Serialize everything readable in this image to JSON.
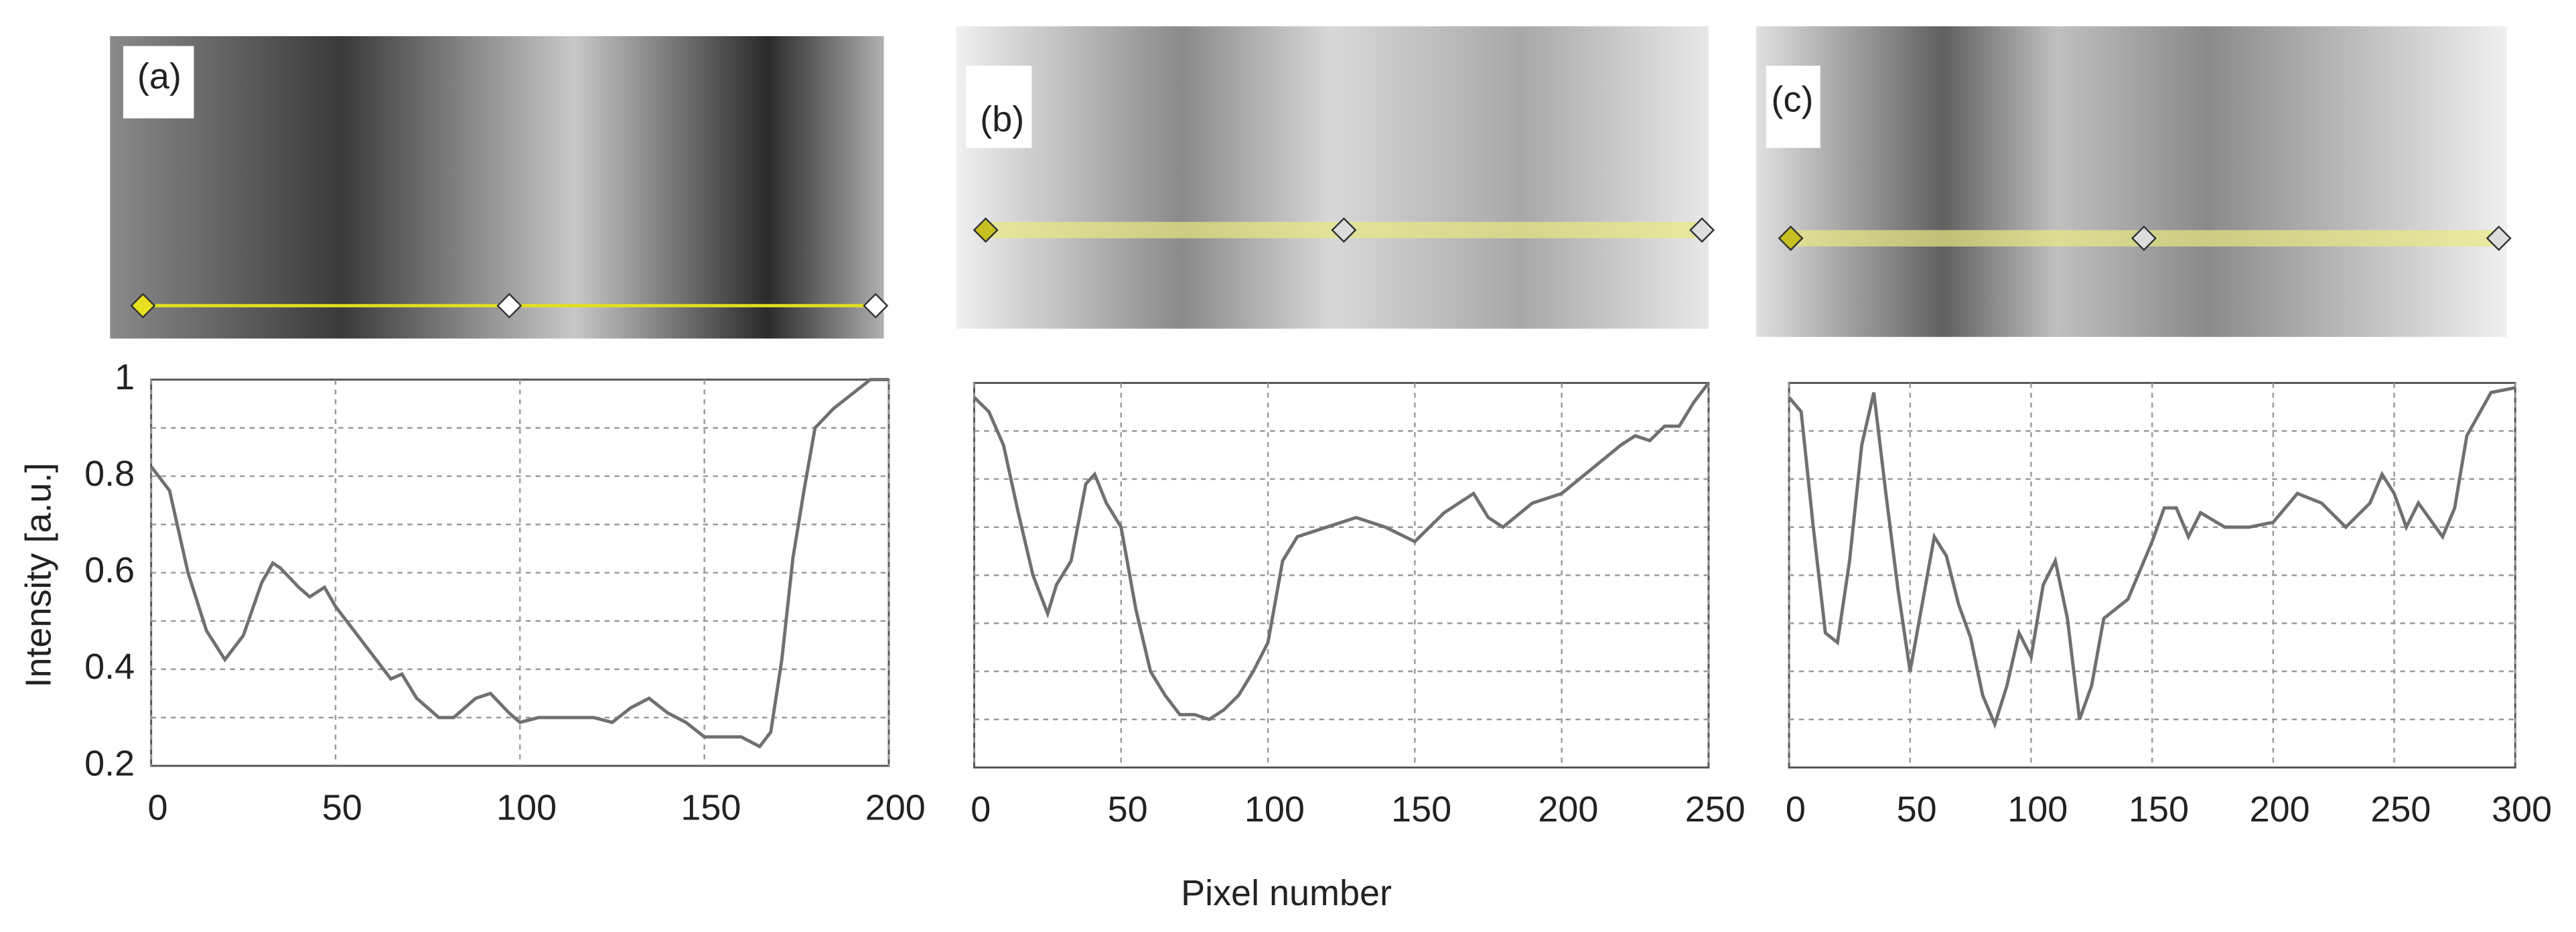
{
  "chart_data": [
    {
      "type": "line",
      "label": "(a)",
      "ylabel": "Intensity [a.u.]",
      "color": "#707070",
      "x": [
        0,
        5,
        10,
        15,
        20,
        25,
        30,
        33,
        35,
        40,
        43,
        47,
        50,
        55,
        60,
        65,
        68,
        72,
        78,
        82,
        88,
        92,
        97,
        100,
        105,
        110,
        120,
        125,
        130,
        135,
        140,
        145,
        150,
        155,
        160,
        165,
        168,
        171,
        174,
        177,
        180,
        185,
        190,
        195,
        200
      ],
      "values": [
        0.82,
        0.77,
        0.6,
        0.48,
        0.42,
        0.47,
        0.58,
        0.62,
        0.61,
        0.57,
        0.55,
        0.57,
        0.53,
        0.48,
        0.43,
        0.38,
        0.39,
        0.34,
        0.3,
        0.3,
        0.34,
        0.35,
        0.31,
        0.29,
        0.3,
        0.3,
        0.3,
        0.29,
        0.32,
        0.34,
        0.31,
        0.29,
        0.26,
        0.26,
        0.26,
        0.24,
        0.27,
        0.42,
        0.63,
        0.77,
        0.9,
        0.94,
        0.97,
        1.0,
        1.0
      ],
      "xlim": [
        0,
        200
      ],
      "xticks": [
        0,
        50,
        100,
        150,
        200
      ],
      "ylim": [
        0.2,
        1.0
      ],
      "yticks": [
        0.2,
        0.4,
        0.6,
        0.8,
        1.0
      ],
      "ygrid": [
        0.3,
        0.4,
        0.5,
        0.6,
        0.7,
        0.8,
        0.9
      ],
      "grid": true
    },
    {
      "type": "line",
      "label": "(b)",
      "xlabel": "Pixel number",
      "color": "#707070",
      "x": [
        0,
        5,
        10,
        15,
        20,
        25,
        28,
        33,
        38,
        41,
        45,
        50,
        55,
        60,
        65,
        70,
        75,
        80,
        85,
        90,
        95,
        100,
        105,
        110,
        120,
        130,
        140,
        150,
        160,
        165,
        170,
        175,
        180,
        190,
        200,
        210,
        220,
        225,
        230,
        235,
        240,
        245,
        250
      ],
      "values": [
        0.97,
        0.94,
        0.87,
        0.73,
        0.6,
        0.52,
        0.58,
        0.63,
        0.79,
        0.81,
        0.75,
        0.7,
        0.53,
        0.4,
        0.35,
        0.31,
        0.31,
        0.3,
        0.32,
        0.35,
        0.4,
        0.46,
        0.63,
        0.68,
        0.7,
        0.72,
        0.7,
        0.67,
        0.73,
        0.75,
        0.77,
        0.72,
        0.7,
        0.75,
        0.77,
        0.82,
        0.87,
        0.89,
        0.88,
        0.91,
        0.91,
        0.96,
        1.0
      ],
      "xlim": [
        0,
        250
      ],
      "xticks": [
        0,
        50,
        100,
        150,
        200,
        250
      ],
      "ylim": [
        0.2,
        1.0
      ],
      "ygrid": [
        0.3,
        0.4,
        0.5,
        0.6,
        0.7,
        0.8,
        0.9
      ],
      "grid": true
    },
    {
      "type": "line",
      "label": "(c)",
      "color": "#707070",
      "x": [
        0,
        5,
        10,
        15,
        20,
        25,
        30,
        35,
        40,
        45,
        50,
        55,
        60,
        65,
        70,
        75,
        80,
        85,
        90,
        95,
        100,
        105,
        110,
        115,
        120,
        125,
        130,
        140,
        150,
        155,
        160,
        165,
        170,
        180,
        190,
        200,
        210,
        220,
        230,
        240,
        245,
        250,
        255,
        260,
        270,
        275,
        280,
        290,
        300
      ],
      "values": [
        0.97,
        0.94,
        0.7,
        0.48,
        0.46,
        0.63,
        0.87,
        0.98,
        0.77,
        0.57,
        0.4,
        0.54,
        0.68,
        0.64,
        0.54,
        0.47,
        0.35,
        0.29,
        0.37,
        0.48,
        0.43,
        0.58,
        0.63,
        0.51,
        0.3,
        0.37,
        0.51,
        0.55,
        0.67,
        0.74,
        0.74,
        0.68,
        0.73,
        0.7,
        0.7,
        0.71,
        0.77,
        0.75,
        0.7,
        0.75,
        0.81,
        0.77,
        0.7,
        0.75,
        0.68,
        0.74,
        0.89,
        0.98,
        0.99
      ],
      "xlim": [
        0,
        300
      ],
      "xticks": [
        0,
        50,
        100,
        150,
        200,
        250,
        300
      ],
      "ylim": [
        0.2,
        1.0
      ],
      "ygrid": [
        0.3,
        0.4,
        0.5,
        0.6,
        0.7,
        0.8,
        0.9
      ],
      "grid": true
    }
  ]
}
